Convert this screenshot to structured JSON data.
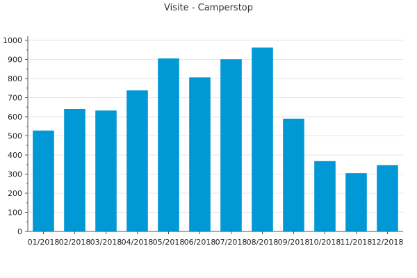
{
  "chart_data": {
    "type": "bar",
    "title": "Visite - Camperstop",
    "xlabel": "",
    "ylabel": "",
    "categories": [
      "01/2018",
      "02/2018",
      "03/2018",
      "04/2018",
      "05/2018",
      "06/2018",
      "07/2018",
      "08/2018",
      "09/2018",
      "10/2018",
      "11/2018",
      "12/2018"
    ],
    "values": [
      528,
      640,
      633,
      738,
      905,
      806,
      901,
      962,
      590,
      368,
      305,
      347
    ],
    "ylim": [
      0,
      1000
    ],
    "yticks": [
      0,
      100,
      200,
      300,
      400,
      500,
      600,
      700,
      800,
      900,
      1000
    ],
    "grid": true,
    "bar_color": "#0099d6",
    "grid_color": "#e6e6e6",
    "axis_color": "#555555"
  }
}
